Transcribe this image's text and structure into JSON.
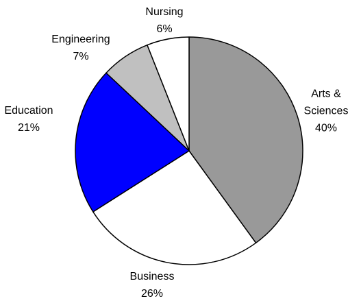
{
  "chart_data": {
    "type": "pie",
    "categories": [
      "Arts & Sciences",
      "Business",
      "Education",
      "Engineering",
      "Nursing"
    ],
    "values": [
      40,
      26,
      21,
      7,
      6
    ],
    "value_labels": [
      "40%",
      "26%",
      "21%",
      "7%",
      "6%"
    ],
    "colors": [
      "#999999",
      "#ffffff",
      "#0000ff",
      "#c0c0c0",
      "#ffffff"
    ]
  }
}
